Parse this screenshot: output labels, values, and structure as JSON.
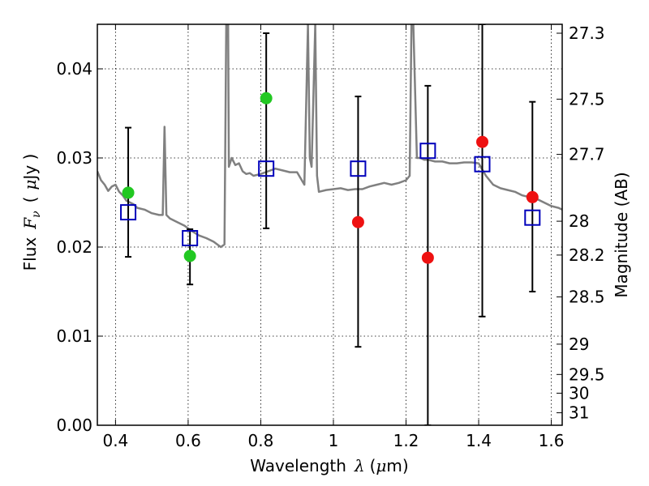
{
  "chart_data": {
    "type": "scatter",
    "xlabel": "Wavelength",
    "xlabel_symbol": "λ",
    "xlabel_unit_open": "(",
    "xlabel_unit_mu": "μ",
    "xlabel_unit_rest": "m)",
    "ylabel_left_prefix": "Flux",
    "ylabel_left_symbol": "F",
    "ylabel_left_sub": "ν",
    "ylabel_left_open": "(",
    "ylabel_left_mu": "μ",
    "ylabel_left_rest": "Jy )",
    "ylabel_right": "Magnitude (AB)",
    "xlim": [
      0.35,
      1.63
    ],
    "ylim": [
      0.0,
      0.045
    ],
    "grid": true,
    "x_ticks": [
      {
        "value": 0.4,
        "label": "0.4"
      },
      {
        "value": 0.6,
        "label": "0.6"
      },
      {
        "value": 0.8,
        "label": "0.8"
      },
      {
        "value": 1.0,
        "label": "1"
      },
      {
        "value": 1.2,
        "label": "1.2"
      },
      {
        "value": 1.4,
        "label": "1.4"
      },
      {
        "value": 1.6,
        "label": "1.6"
      }
    ],
    "y_ticks": [
      {
        "value": 0.0,
        "label": "0.00"
      },
      {
        "value": 0.01,
        "label": "0.01"
      },
      {
        "value": 0.02,
        "label": "0.02"
      },
      {
        "value": 0.03,
        "label": "0.03"
      },
      {
        "value": 0.04,
        "label": "0.04"
      }
    ],
    "right_ticks": [
      {
        "flux": 0.044,
        "label": "27.3"
      },
      {
        "flux": 0.0366,
        "label": "27.5"
      },
      {
        "flux": 0.0304,
        "label": "27.7"
      },
      {
        "flux": 0.0229,
        "label": "28"
      },
      {
        "flux": 0.0191,
        "label": "28.2"
      },
      {
        "flux": 0.0144,
        "label": "28.5"
      },
      {
        "flux": 0.0091,
        "label": "29"
      },
      {
        "flux": 0.0057,
        "label": "29.5"
      },
      {
        "flux": 0.0036,
        "label": "30"
      },
      {
        "flux": 0.0014,
        "label": "31"
      }
    ],
    "colors": {
      "spectrum": "#808080",
      "green_points": "#22c822",
      "red_points": "#ee1111",
      "model_squares": "#0000bb",
      "error_bars": "#000000"
    },
    "series": [
      {
        "name": "spectrum",
        "kind": "line",
        "x": [
          0.35,
          0.36,
          0.37,
          0.38,
          0.39,
          0.4,
          0.41,
          0.42,
          0.43,
          0.44,
          0.45,
          0.46,
          0.48,
          0.5,
          0.52,
          0.53,
          0.535,
          0.54,
          0.55,
          0.57,
          0.59,
          0.61,
          0.63,
          0.65,
          0.67,
          0.69,
          0.7,
          0.705,
          0.71,
          0.712,
          0.72,
          0.73,
          0.74,
          0.75,
          0.76,
          0.77,
          0.78,
          0.8,
          0.82,
          0.84,
          0.86,
          0.88,
          0.9,
          0.92,
          0.93,
          0.935,
          0.94,
          0.95,
          0.955,
          0.96,
          0.98,
          1.0,
          1.02,
          1.04,
          1.06,
          1.08,
          1.1,
          1.12,
          1.14,
          1.16,
          1.18,
          1.2,
          1.21,
          1.215,
          1.22,
          1.23,
          1.24,
          1.25,
          1.26,
          1.28,
          1.3,
          1.32,
          1.34,
          1.36,
          1.38,
          1.4,
          1.42,
          1.44,
          1.46,
          1.48,
          1.5,
          1.52,
          1.54,
          1.56,
          1.58,
          1.6,
          1.62,
          1.63
        ],
        "y": [
          0.0285,
          0.0275,
          0.027,
          0.0263,
          0.0268,
          0.027,
          0.0262,
          0.0258,
          0.0252,
          0.025,
          0.0248,
          0.0244,
          0.0242,
          0.0238,
          0.0236,
          0.0236,
          0.0335,
          0.0236,
          0.0232,
          0.0228,
          0.0224,
          0.0218,
          0.0213,
          0.021,
          0.0206,
          0.02,
          0.0203,
          0.045,
          0.045,
          0.029,
          0.03,
          0.0292,
          0.0294,
          0.0285,
          0.0282,
          0.0283,
          0.028,
          0.0282,
          0.0285,
          0.0288,
          0.0286,
          0.0284,
          0.0284,
          0.027,
          0.045,
          0.03,
          0.029,
          0.045,
          0.028,
          0.0262,
          0.0264,
          0.0265,
          0.0266,
          0.0264,
          0.0265,
          0.0265,
          0.0268,
          0.027,
          0.0272,
          0.027,
          0.0272,
          0.0275,
          0.028,
          0.045,
          0.045,
          0.03,
          0.03,
          0.0298,
          0.0298,
          0.0296,
          0.0296,
          0.0294,
          0.0294,
          0.0295,
          0.0295,
          0.0294,
          0.028,
          0.027,
          0.0266,
          0.0264,
          0.0262,
          0.0258,
          0.0256,
          0.0254,
          0.025,
          0.0246,
          0.0244,
          0.0242
        ]
      },
      {
        "name": "green points",
        "kind": "points",
        "x": [
          0.435,
          0.605,
          0.815
        ],
        "y": [
          0.0261,
          0.019,
          0.0367
        ]
      },
      {
        "name": "red points",
        "kind": "points",
        "x": [
          1.068,
          1.26,
          1.41,
          1.548
        ],
        "y": [
          0.0228,
          0.0188,
          0.0318,
          0.0256
        ]
      },
      {
        "name": "model squares",
        "kind": "squares",
        "x": [
          0.435,
          0.605,
          0.815,
          1.068,
          1.26,
          1.41,
          1.548
        ],
        "y": [
          0.0239,
          0.021,
          0.0288,
          0.0288,
          0.0308,
          0.0293,
          0.0233
        ],
        "err_low": [
          0.0189,
          0.0158,
          0.0221,
          0.0088,
          0.0,
          0.0122,
          0.015
        ],
        "err_high": [
          0.0334,
          0.022,
          0.044,
          0.0369,
          0.0381,
          0.045,
          0.0363
        ]
      }
    ]
  }
}
